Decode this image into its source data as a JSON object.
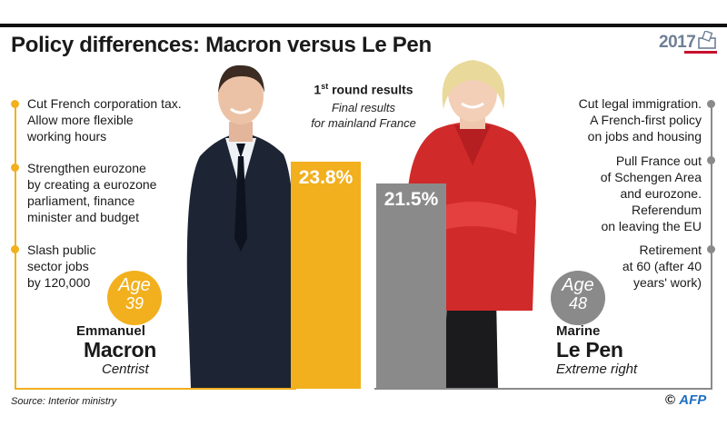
{
  "headline": "Policy differences: Macron versus Le Pen",
  "year_logo": "2017",
  "round_title": {
    "main": "1",
    "sup": "st",
    "rest": " round results"
  },
  "round_subtitle_1": "Final results",
  "round_subtitle_2": "for mainland France",
  "colors": {
    "macron": "#f2b01e",
    "lepen": "#8a8a8a",
    "logo_red": "#c8102e",
    "afp_blue": "#1f6fc3"
  },
  "chart_data": {
    "type": "bar",
    "categories": [
      "Emmanuel Macron",
      "Marine Le Pen"
    ],
    "values": [
      23.8,
      21.5
    ],
    "labels": [
      "23.8%",
      "21.5%"
    ],
    "title": "1st round results",
    "subtitle": "Final results for mainland France",
    "ylim": [
      0,
      30
    ]
  },
  "macron": {
    "first_name": "Emmanuel",
    "last_name": "Macron",
    "party": "Centrist",
    "age_label": "Age",
    "age": "39",
    "policies": [
      [
        "Cut French corporation tax.",
        "Allow more flexible",
        "working hours"
      ],
      [
        "Strengthen eurozone",
        "by creating a eurozone",
        "parliament, finance",
        "minister and budget"
      ],
      [
        "Slash public",
        "sector jobs",
        "by 120,000"
      ]
    ]
  },
  "lepen": {
    "first_name": "Marine",
    "last_name": "Le Pen",
    "party": "Extreme right",
    "age_label": "Age",
    "age": "48",
    "policies": [
      [
        "Cut legal immigration.",
        "A French-first policy",
        "on jobs and housing"
      ],
      [
        "Pull France out",
        "of Schengen Area",
        "and eurozone.",
        "Referendum",
        "on leaving the EU"
      ],
      [
        "Retirement",
        "at 60 (after 40",
        "years' work)"
      ]
    ]
  },
  "source": "Source: Interior ministry",
  "credit": {
    "symbol": "©",
    "agency": "AFP"
  }
}
